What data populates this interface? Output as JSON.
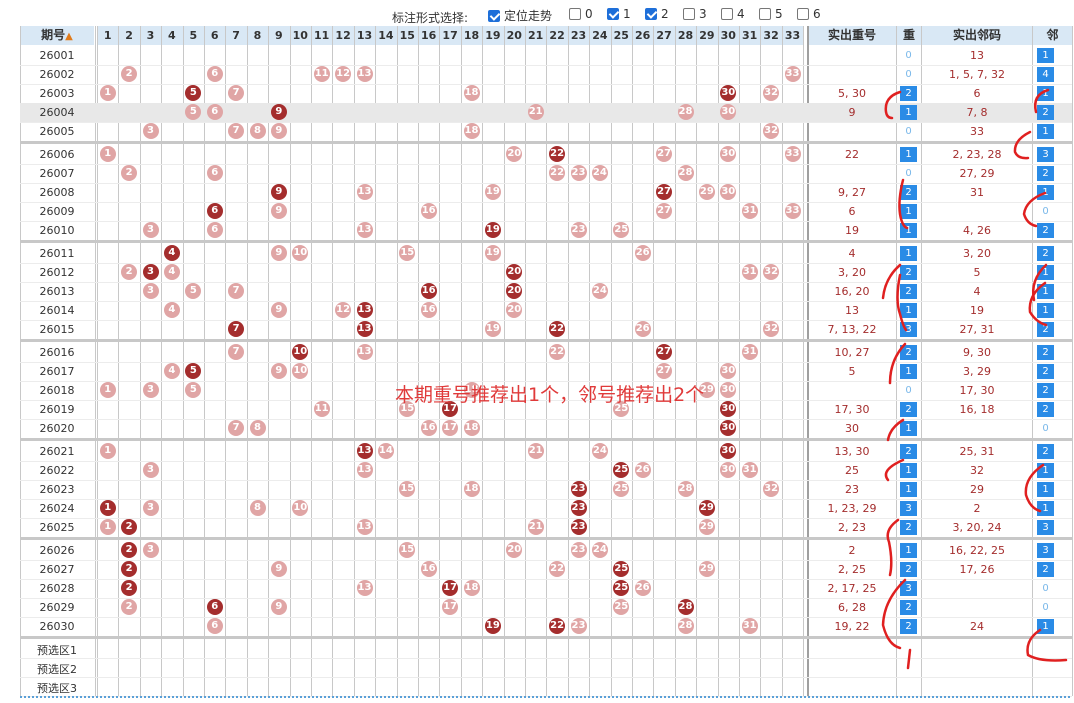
{
  "toolbar": {
    "label": "标注形式选择:",
    "options": [
      {
        "label": "定位走势",
        "checked": true
      },
      {
        "label": "0",
        "checked": false
      },
      {
        "label": "1",
        "checked": true
      },
      {
        "label": "2",
        "checked": true
      },
      {
        "label": "3",
        "checked": false
      },
      {
        "label": "4",
        "checked": false
      },
      {
        "label": "5",
        "checked": false
      },
      {
        "label": "6",
        "checked": false
      }
    ]
  },
  "headers": {
    "period": "期号",
    "sort_icon": "sort-icon",
    "numbers": [
      "1",
      "2",
      "3",
      "4",
      "5",
      "6",
      "7",
      "8",
      "9",
      "10",
      "11",
      "12",
      "13",
      "14",
      "15",
      "16",
      "17",
      "18",
      "19",
      "20",
      "21",
      "22",
      "23",
      "24",
      "25",
      "26",
      "27",
      "28",
      "29",
      "30",
      "31",
      "32",
      "33"
    ],
    "repeat_numbers": "实出重号",
    "repeat_count": "重",
    "adjacent_numbers": "实出邻码",
    "adjacent_count": "邻"
  },
  "rows": [
    {
      "period": "26001",
      "balls": [],
      "dark": [],
      "repeat": "",
      "rc": "0",
      "adj": "13",
      "ac": "1"
    },
    {
      "period": "26002",
      "balls": [
        2,
        6,
        11,
        12,
        13,
        33
      ],
      "dark": [],
      "repeat": "",
      "rc": "0",
      "adj": "1, 5, 7, 32",
      "ac": "4"
    },
    {
      "period": "26003",
      "balls": [
        1,
        5,
        7,
        18,
        30,
        32
      ],
      "dark": [
        5,
        30
      ],
      "repeat": "5, 30",
      "rc": "2",
      "adj": "6",
      "ac": "1"
    },
    {
      "period": "26004",
      "balls": [
        5,
        6,
        9,
        21,
        28,
        30
      ],
      "dark": [
        9
      ],
      "repeat": "9",
      "rc": "1",
      "adj": "7, 8",
      "ac": "2"
    },
    {
      "period": "26005",
      "balls": [
        3,
        7,
        8,
        9,
        18,
        32
      ],
      "dark": [],
      "repeat": "",
      "rc": "0",
      "adj": "33",
      "ac": "1"
    },
    {
      "period": "26006",
      "balls": [
        1,
        20,
        22,
        27,
        30,
        33
      ],
      "dark": [
        22
      ],
      "repeat": "22",
      "rc": "1",
      "adj": "2, 23, 28",
      "ac": "3"
    },
    {
      "period": "26007",
      "balls": [
        2,
        6,
        22,
        23,
        24,
        28
      ],
      "dark": [],
      "repeat": "",
      "rc": "0",
      "adj": "27, 29",
      "ac": "2"
    },
    {
      "period": "26008",
      "balls": [
        9,
        13,
        19,
        27,
        29,
        30
      ],
      "dark": [
        9,
        27
      ],
      "repeat": "9, 27",
      "rc": "2",
      "adj": "31",
      "ac": "1"
    },
    {
      "period": "26009",
      "balls": [
        6,
        9,
        16,
        27,
        31,
        33
      ],
      "dark": [
        6
      ],
      "repeat": "6",
      "rc": "1",
      "adj": "",
      "ac": "0"
    },
    {
      "period": "26010",
      "balls": [
        3,
        6,
        13,
        19,
        23,
        25
      ],
      "dark": [
        19
      ],
      "repeat": "19",
      "rc": "1",
      "adj": "4, 26",
      "ac": "2"
    },
    {
      "period": "26011",
      "balls": [
        4,
        9,
        10,
        15,
        19,
        26
      ],
      "dark": [
        4
      ],
      "repeat": "4",
      "rc": "1",
      "adj": "3, 20",
      "ac": "2"
    },
    {
      "period": "26012",
      "balls": [
        2,
        3,
        4,
        20,
        31,
        32
      ],
      "dark": [
        3,
        20
      ],
      "repeat": "3, 20",
      "rc": "2",
      "adj": "5",
      "ac": "1"
    },
    {
      "period": "26013",
      "balls": [
        3,
        5,
        7,
        16,
        20,
        24
      ],
      "dark": [
        16,
        20
      ],
      "repeat": "16, 20",
      "rc": "2",
      "adj": "4",
      "ac": "1"
    },
    {
      "period": "26014",
      "balls": [
        4,
        9,
        12,
        13,
        16,
        20
      ],
      "dark": [
        13
      ],
      "repeat": "13",
      "rc": "1",
      "adj": "19",
      "ac": "1"
    },
    {
      "period": "26015",
      "balls": [
        7,
        13,
        19,
        22,
        26,
        32
      ],
      "dark": [
        7,
        13,
        22
      ],
      "repeat": "7, 13, 22",
      "rc": "3",
      "adj": "27, 31",
      "ac": "2"
    },
    {
      "period": "26016",
      "balls": [
        7,
        10,
        13,
        22,
        27,
        31
      ],
      "dark": [
        10,
        27
      ],
      "repeat": "10, 27",
      "rc": "2",
      "adj": "9, 30",
      "ac": "2"
    },
    {
      "period": "26017",
      "balls": [
        4,
        5,
        9,
        10,
        27,
        30
      ],
      "dark": [
        5
      ],
      "repeat": "5",
      "rc": "1",
      "adj": "3, 29",
      "ac": "2"
    },
    {
      "period": "26018",
      "balls": [
        1,
        3,
        5,
        18,
        29,
        30
      ],
      "dark": [],
      "repeat": "",
      "rc": "0",
      "adj": "17, 30",
      "ac": "2"
    },
    {
      "period": "26019",
      "balls": [
        11,
        15,
        17,
        25,
        30
      ],
      "dark": [
        17,
        30
      ],
      "repeat": "17, 30",
      "rc": "2",
      "adj": "16, 18",
      "ac": "2"
    },
    {
      "period": "26020",
      "balls": [
        7,
        8,
        16,
        17,
        18,
        30
      ],
      "dark": [
        30
      ],
      "repeat": "30",
      "rc": "1",
      "adj": "",
      "ac": "0"
    },
    {
      "period": "26021",
      "balls": [
        1,
        13,
        14,
        21,
        24,
        30
      ],
      "dark": [
        13,
        30
      ],
      "repeat": "13, 30",
      "rc": "2",
      "adj": "25, 31",
      "ac": "2"
    },
    {
      "period": "26022",
      "balls": [
        3,
        13,
        25,
        26,
        30,
        31
      ],
      "dark": [
        25
      ],
      "repeat": "25",
      "rc": "1",
      "adj": "32",
      "ac": "1"
    },
    {
      "period": "26023",
      "balls": [
        15,
        18,
        23,
        25,
        28,
        32
      ],
      "dark": [
        23
      ],
      "repeat": "23",
      "rc": "1",
      "adj": "29",
      "ac": "1"
    },
    {
      "period": "26024",
      "balls": [
        1,
        3,
        8,
        10,
        23,
        29
      ],
      "dark": [
        1,
        23,
        29
      ],
      "repeat": "1, 23, 29",
      "rc": "3",
      "adj": "2",
      "ac": "1"
    },
    {
      "period": "26025",
      "balls": [
        1,
        2,
        13,
        21,
        23,
        29
      ],
      "dark": [
        2,
        23
      ],
      "repeat": "2, 23",
      "rc": "2",
      "adj": "3, 20, 24",
      "ac": "3"
    },
    {
      "period": "26026",
      "balls": [
        2,
        3,
        15,
        20,
        23,
        24
      ],
      "dark": [
        2
      ],
      "repeat": "2",
      "rc": "1",
      "adj": "16, 22, 25",
      "ac": "3"
    },
    {
      "period": "26027",
      "balls": [
        2,
        9,
        16,
        22,
        25,
        29
      ],
      "dark": [
        2,
        25
      ],
      "repeat": "2, 25",
      "rc": "2",
      "adj": "17, 26",
      "ac": "2"
    },
    {
      "period": "26028",
      "balls": [
        2,
        13,
        17,
        18,
        25,
        26
      ],
      "dark": [
        2,
        17,
        25
      ],
      "repeat": "2, 17, 25",
      "rc": "3",
      "adj": "",
      "ac": "0"
    },
    {
      "period": "26029",
      "balls": [
        2,
        6,
        9,
        17,
        25,
        28
      ],
      "dark": [
        6,
        28
      ],
      "repeat": "6, 28",
      "rc": "2",
      "adj": "",
      "ac": "0"
    },
    {
      "period": "26030",
      "balls": [
        6,
        19,
        22,
        23,
        28,
        31
      ],
      "dark": [
        19,
        22
      ],
      "repeat": "19, 22",
      "rc": "2",
      "adj": "24",
      "ac": "1"
    }
  ],
  "preselect": [
    "预选区1",
    "预选区2",
    "预选区3"
  ],
  "annotation": "本期重号推荐出1个，邻号推荐出2个",
  "colors": {
    "header_bg": "#d9e8f5",
    "ball_light": "#e0a5a5",
    "ball_dark": "#a42d2d",
    "count_blue": "#2a8be6",
    "annotation": "#e03a3a"
  }
}
